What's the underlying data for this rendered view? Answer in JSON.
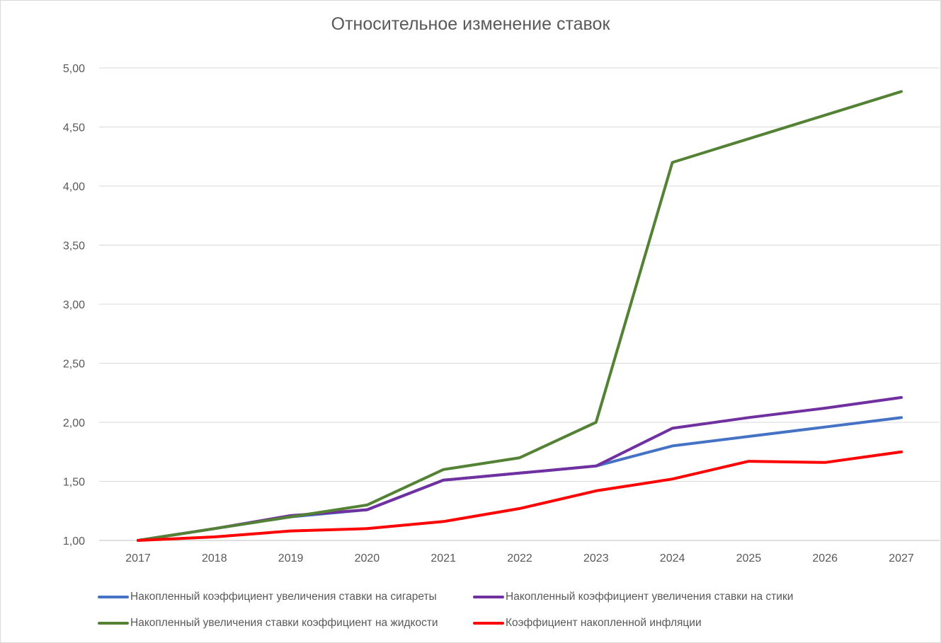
{
  "chart_data": {
    "type": "line",
    "title": "Относительное изменение ставок",
    "categories": [
      "2017",
      "2018",
      "2019",
      "2020",
      "2021",
      "2022",
      "2023",
      "2024",
      "2025",
      "2026",
      "2027"
    ],
    "y_tick_labels": [
      "1,00",
      "1,50",
      "2,00",
      "2,50",
      "3,00",
      "3,50",
      "4,00",
      "4,50",
      "5,00"
    ],
    "ylim": [
      1.0,
      5.0
    ],
    "grid": true,
    "legend_position": "bottom",
    "series": [
      {
        "name": "Накопленный коэффициент увеличения ставки на сигареты",
        "color": "#4472c4",
        "values": [
          1.0,
          1.1,
          1.2,
          1.26,
          1.51,
          1.57,
          1.63,
          1.8,
          1.88,
          1.96,
          2.04
        ]
      },
      {
        "name": "Накопленный коэффициент увеличения ставки на стики",
        "color": "#7030a0",
        "values": [
          1.0,
          1.1,
          1.21,
          1.26,
          1.51,
          1.57,
          1.63,
          1.95,
          2.04,
          2.12,
          2.21
        ]
      },
      {
        "name": "Накопленный увеличения ставки коэффициент на жидкости",
        "color": "#548235",
        "values": [
          1.0,
          1.1,
          1.2,
          1.3,
          1.6,
          1.7,
          2.0,
          4.2,
          4.4,
          4.6,
          4.8
        ]
      },
      {
        "name": "Коэффициент накопленной инфляции",
        "color": "#ff0000",
        "values": [
          1.0,
          1.03,
          1.08,
          1.1,
          1.16,
          1.27,
          1.42,
          1.52,
          1.67,
          1.66,
          1.75
        ]
      }
    ]
  }
}
